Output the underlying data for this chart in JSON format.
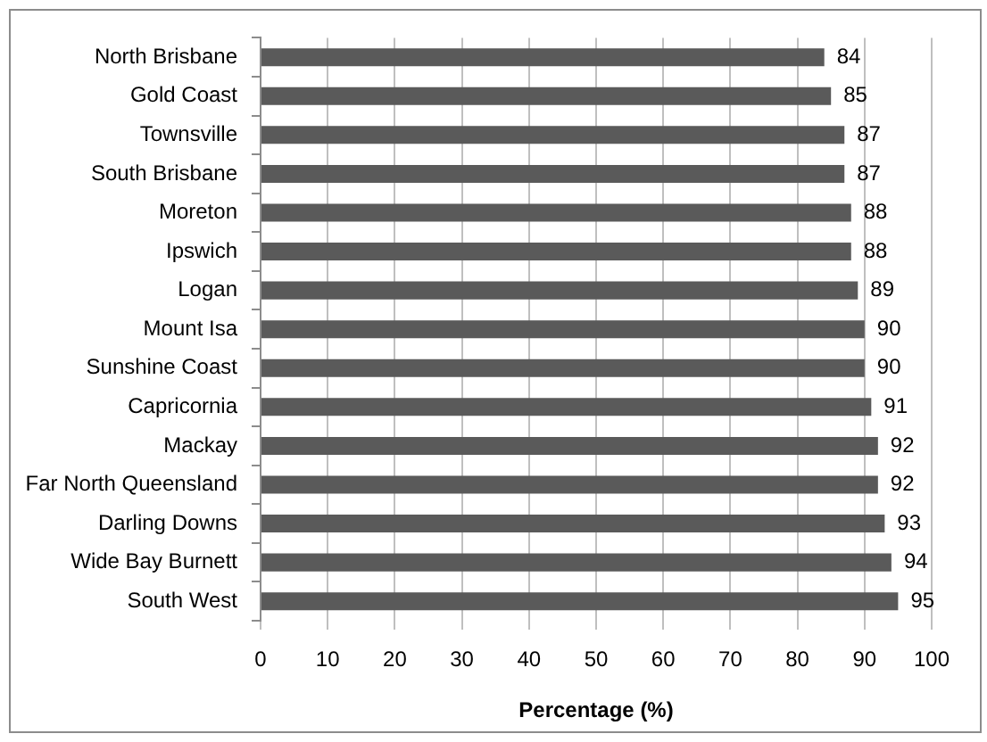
{
  "chart_data": {
    "type": "bar",
    "orientation": "horizontal",
    "categories": [
      "North Brisbane",
      "Gold Coast",
      "Townsville",
      "South Brisbane",
      "Moreton",
      "Ipswich",
      "Logan",
      "Mount Isa",
      "Sunshine Coast",
      "Capricornia",
      "Mackay",
      "Far North Queensland",
      "Darling Downs",
      "Wide Bay Burnett",
      "South West"
    ],
    "values": [
      84,
      85,
      87,
      87,
      88,
      88,
      89,
      90,
      90,
      91,
      92,
      92,
      93,
      94,
      95
    ],
    "color": "#5a5a5a",
    "xlabel": "Percentage (%)",
    "xlim": [
      0,
      100
    ],
    "xticks": [
      0,
      10,
      20,
      30,
      40,
      50,
      60,
      70,
      80,
      90,
      100
    ],
    "grid": "x",
    "data_labels": true
  }
}
